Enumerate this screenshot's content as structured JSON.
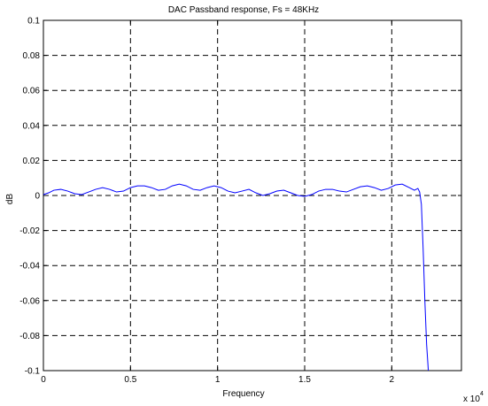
{
  "chart_data": {
    "type": "line",
    "title": "DAC Passband response, Fs = 48KHz",
    "xlabel": "Frequency",
    "ylabel": "dB",
    "x_multiplier_label": "x 10",
    "x_multiplier_exponent": "4",
    "xlim": [
      0,
      24000
    ],
    "ylim": [
      -0.1,
      0.1
    ],
    "grid": true,
    "x_ticks": [
      0,
      5000,
      10000,
      15000,
      20000
    ],
    "x_tick_labels": [
      "0",
      "0.5",
      "1",
      "1.5",
      "2"
    ],
    "y_ticks": [
      -0.1,
      -0.08,
      -0.06,
      -0.04,
      -0.02,
      0,
      0.02,
      0.04,
      0.06,
      0.08,
      0.1
    ],
    "y_tick_labels": [
      "-0.1",
      "-0.08",
      "-0.06",
      "-0.04",
      "-0.02",
      "0",
      "0.02",
      "0.04",
      "0.06",
      "0.08",
      "0.1"
    ],
    "line_color": "#0000ff",
    "series": [
      {
        "x": [
          0,
          300,
          600,
          1000,
          1400,
          1800,
          2200,
          2600,
          3000,
          3400,
          3800,
          4200,
          4600,
          5000,
          5400,
          5800,
          6200,
          6600,
          7000,
          7400,
          7800,
          8200,
          8600,
          9000,
          9400,
          9800,
          10200,
          10600,
          11000,
          11400,
          11800,
          12200,
          12600,
          13000,
          13400,
          13800,
          14200,
          14600,
          15000,
          15400,
          15800,
          16200,
          16600,
          17000,
          17400,
          17800,
          18200,
          18600,
          19000,
          19400,
          19800,
          20200,
          20600,
          21000,
          21300,
          21500,
          21600,
          21700,
          21800,
          21900,
          22000,
          22100
        ],
        "y": [
          0.0005,
          0.0015,
          0.003,
          0.0035,
          0.0025,
          0.001,
          0.0005,
          0.002,
          0.0035,
          0.0045,
          0.0035,
          0.002,
          0.0025,
          0.0045,
          0.0055,
          0.0055,
          0.0045,
          0.003,
          0.0035,
          0.0055,
          0.0065,
          0.0055,
          0.0035,
          0.003,
          0.0045,
          0.0055,
          0.0045,
          0.0025,
          0.0015,
          0.0025,
          0.0035,
          0.0015,
          0.0,
          0.001,
          0.0025,
          0.003,
          0.0015,
          0.0,
          -0.0005,
          0.0005,
          0.0025,
          0.0035,
          0.0035,
          0.0025,
          0.002,
          0.0035,
          0.005,
          0.0055,
          0.0045,
          0.003,
          0.004,
          0.006,
          0.0065,
          0.0045,
          0.003,
          0.004,
          0.002,
          -0.005,
          -0.03,
          -0.06,
          -0.085,
          -0.1
        ]
      }
    ]
  }
}
